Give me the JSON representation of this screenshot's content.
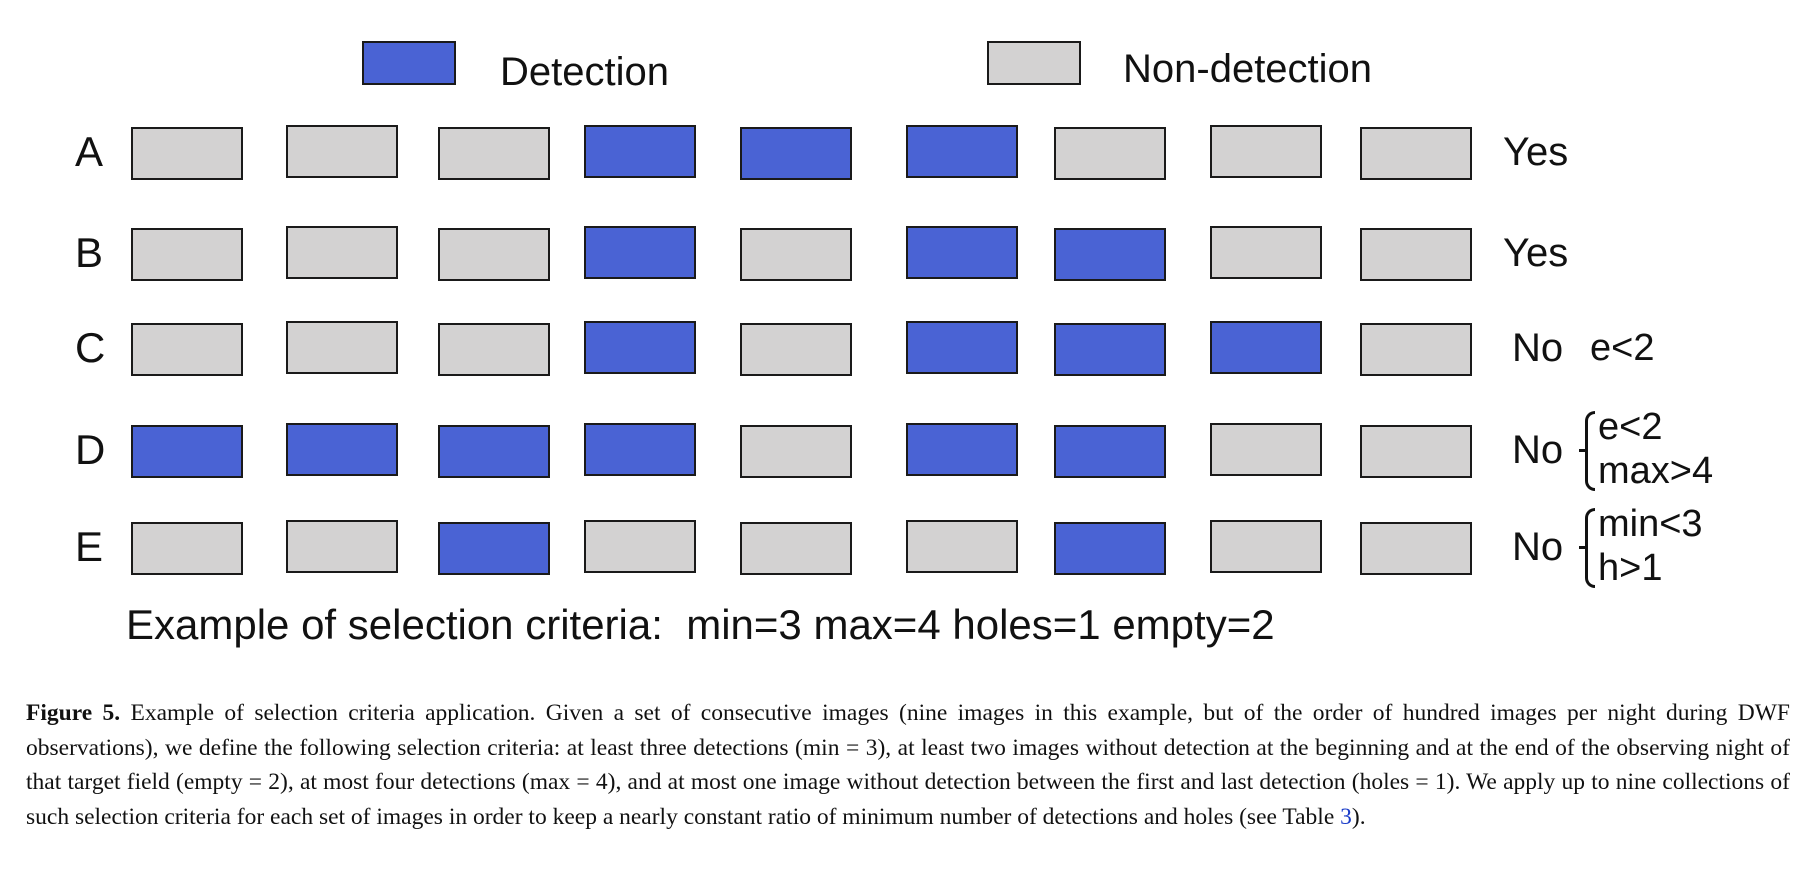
{
  "legend": {
    "detection_label": "Detection",
    "nondetection_label": "Non-detection",
    "detection_color": "#4a63d4",
    "nondetection_color": "#d3d2d2"
  },
  "rows": [
    {
      "label": "A",
      "cells": [
        0,
        0,
        0,
        1,
        1,
        1,
        0,
        0,
        0
      ],
      "result": "Yes",
      "conditions": []
    },
    {
      "label": "B",
      "cells": [
        0,
        0,
        0,
        1,
        0,
        1,
        1,
        0,
        0
      ],
      "result": "Yes",
      "conditions": []
    },
    {
      "label": "C",
      "cells": [
        0,
        0,
        0,
        1,
        0,
        1,
        1,
        1,
        0
      ],
      "result": "No",
      "conditions": [
        "e<2"
      ]
    },
    {
      "label": "D",
      "cells": [
        1,
        1,
        1,
        1,
        0,
        1,
        1,
        0,
        0
      ],
      "result": "No",
      "conditions": [
        "e<2",
        "max>4"
      ]
    },
    {
      "label": "E",
      "cells": [
        0,
        0,
        1,
        0,
        0,
        0,
        1,
        0,
        0
      ],
      "result": "No",
      "conditions": [
        "min<3",
        "h>1"
      ]
    }
  ],
  "summary": "Example of selection criteria:  min=3 max=4 holes=1 empty=2",
  "caption": {
    "figure_label": "Figure 5.",
    "text_before_ref": " Example of selection criteria application. Given a set of consecutive images (nine images in this example, but of the order of hundred images per night during DWF observations), we define the following selection criteria: at least three detections (min = 3), at least two images without detection at the beginning and at the end of the observing night of that target field (empty = 2), at most four detections (max = 4), and at most one image without detection between the first and last detection (holes = 1). We apply up to nine collections of such selection criteria for each set of images in order to keep a nearly constant ratio of minimum number of detections and holes (see Table ",
    "table_ref": "3",
    "text_after_ref": ")."
  }
}
